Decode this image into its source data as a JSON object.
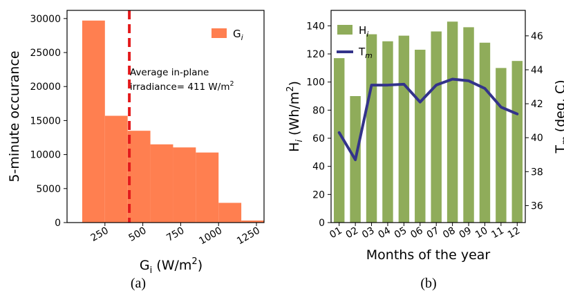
{
  "panels": {
    "a": {
      "caption": "(a)"
    },
    "b": {
      "caption": "(b)"
    }
  },
  "colors": {
    "histogram": "#ff7f50",
    "average_line": "#e31a1c",
    "bars": "#8fac5a",
    "line": "#33338a"
  },
  "chart_data": [
    {
      "type": "bar",
      "subtype": "histogram",
      "xlabel": "G",
      "xlabel_sub": "i",
      "xlabel_unit": " (W/m",
      "xlabel_sup": "2",
      "xlabel_end": ")",
      "ylabel": "5-minute occurance",
      "xlim": [
        0,
        1300
      ],
      "ylim": [
        0,
        31200
      ],
      "xticks": [
        250,
        500,
        750,
        1000,
        1250
      ],
      "yticks": [
        0,
        5000,
        10000,
        15000,
        20000,
        25000,
        30000
      ],
      "bins": [
        {
          "start": 100,
          "end": 250,
          "count": 29700
        },
        {
          "start": 250,
          "end": 400,
          "count": 15700
        },
        {
          "start": 400,
          "end": 550,
          "count": 13500
        },
        {
          "start": 550,
          "end": 700,
          "count": 11500
        },
        {
          "start": 700,
          "end": 850,
          "count": 11050
        },
        {
          "start": 850,
          "end": 1000,
          "count": 10300
        },
        {
          "start": 1000,
          "end": 1150,
          "count": 2900
        },
        {
          "start": 1150,
          "end": 1300,
          "count": 300
        }
      ],
      "average_line": {
        "x": 411
      },
      "annotation": {
        "line1": "Average in-plane",
        "line2": "irradiance= 411 W/m",
        "line2_sup": "2"
      },
      "legend": {
        "label": "G",
        "label_sub": "i",
        "placement": "top-right"
      },
      "grid": false
    },
    {
      "type": "bar",
      "subtype": "bar-line-dual-axis",
      "categories": [
        "01",
        "02",
        "03",
        "04",
        "05",
        "06",
        "07",
        "08",
        "09",
        "10",
        "11",
        "12"
      ],
      "series": [
        {
          "name": "H",
          "name_sub": "i",
          "type": "bar",
          "axis": "left",
          "values": [
            117,
            90,
            134,
            129,
            133,
            123,
            136,
            143,
            139,
            128,
            110,
            115
          ]
        },
        {
          "name": "T",
          "name_sub": "m",
          "type": "line",
          "axis": "right",
          "values": [
            40.3,
            38.7,
            43.1,
            43.1,
            43.15,
            42.1,
            43.1,
            43.45,
            43.35,
            42.9,
            41.8,
            41.4
          ]
        }
      ],
      "xlabel": "Months of the year",
      "ylabel": "H",
      "ylabel_sub": "i",
      "ylabel_unit": " (Wh/m",
      "ylabel_sup": "2",
      "ylabel_end": ")",
      "y2label": "T",
      "y2label_sub": "m",
      "y2label_unit": " (deg. C)",
      "ylim": [
        0,
        151
      ],
      "y2lim": [
        35,
        47.5
      ],
      "yticks": [
        0,
        20,
        40,
        60,
        80,
        100,
        120,
        140
      ],
      "y2ticks": [
        36,
        38,
        40,
        42,
        44,
        46
      ],
      "legend": {
        "placement": "top-left"
      },
      "grid": false
    }
  ]
}
